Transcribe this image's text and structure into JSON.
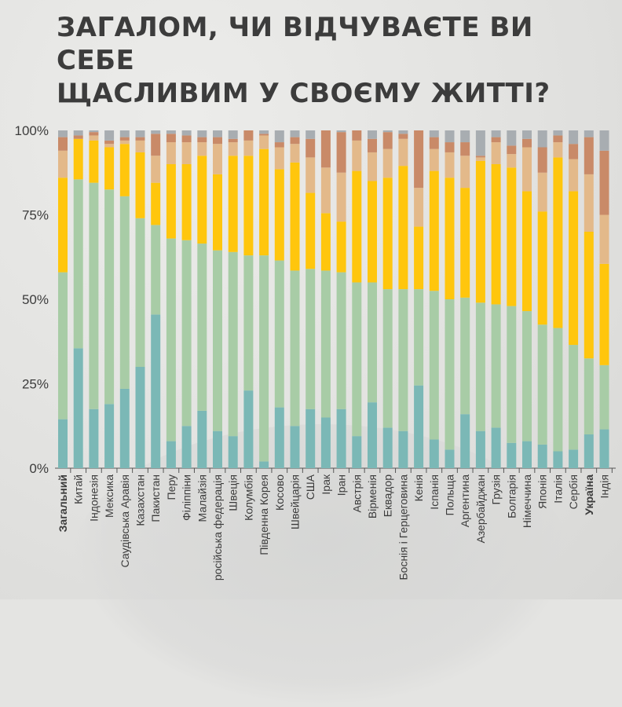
{
  "title_lines": [
    "ЗАГАЛОМ, ЧИ ВІДЧУВАЄТЕ ВИ СЕБЕ",
    "ЩАСЛИВИМ У СВОЄМУ ЖИТТІ?"
  ],
  "colors": {
    "very_happy": "#7bb8b6",
    "rather_happy": "#a8cca6",
    "rather_unhappy": "#ffc60d",
    "not_at_all_happy": "#e3b98a",
    "dont_know": "#c98a68",
    "no_answer": "#a8adb1",
    "text": "#3c3c3c"
  },
  "chart_data": {
    "type": "bar",
    "stacked": true,
    "ylim": [
      0,
      100
    ],
    "yticks": [
      "0%",
      "25%",
      "50%",
      "75%",
      "100%"
    ],
    "grid": false,
    "highlight_categories": [
      "Загальний",
      "Україна"
    ],
    "categories": [
      "Загальний",
      "Китай",
      "Індонезія",
      "Мексика",
      "Саудівська Аравія",
      "Казахстан",
      "Пакистан",
      "Перу",
      "Філіппіни",
      "Малайзія",
      "російська федерація",
      "Швеція",
      "Колумбія",
      "Південна Корея",
      "Косово",
      "Швейцарія",
      "США",
      "Ірак",
      "Іран",
      "Австрія",
      "Вірменія",
      "Еквадор",
      "Боснія і Герцеговина",
      "Кенія",
      "Іспанія",
      "Польща",
      "Аргентина",
      "Азербайджан",
      "Грузія",
      "Болгарія",
      "Німеччина",
      "Японія",
      "Італія",
      "Сербія",
      "Україна",
      "Індія"
    ],
    "series": [
      {
        "values": [
          14.5,
          35.5,
          17.5,
          19,
          23.5,
          30,
          45.5,
          8,
          12.5,
          17,
          11,
          9.5,
          23,
          2,
          18,
          12.5,
          17.5,
          15,
          17.5,
          9.5,
          19.5,
          12,
          11,
          24.5,
          8.5,
          5.5,
          16,
          11,
          12,
          7.5,
          8,
          7,
          5,
          5.5,
          10,
          11.5
        ]
      },
      {
        "values": [
          43.5,
          50,
          67,
          63.5,
          57,
          44,
          26.5,
          60,
          55,
          49.5,
          53.5,
          54.5,
          40,
          61,
          43.5,
          46,
          41.5,
          43.5,
          40.5,
          45.5,
          35.5,
          41,
          42,
          28.5,
          44,
          44.5,
          34.5,
          38,
          36.5,
          40.5,
          38.5,
          35.5,
          36.5,
          31,
          22.5,
          19
        ]
      },
      {
        "values": [
          28,
          12,
          12.5,
          12.5,
          15.5,
          19.5,
          12.5,
          22,
          22.5,
          26,
          22.5,
          28.5,
          29.5,
          31.5,
          27,
          32,
          22.5,
          17,
          15,
          33,
          30,
          33,
          36.5,
          18.5,
          35.5,
          36,
          32.5,
          42,
          41.5,
          41,
          35.5,
          33.5,
          50.5,
          45.5,
          37.5,
          30
        ]
      },
      {
        "values": [
          8,
          0,
          1.5,
          1,
          1,
          3.5,
          8,
          6.5,
          6.5,
          4,
          9,
          4,
          4.5,
          4,
          6.5,
          5.5,
          10.5,
          13.5,
          14.5,
          9,
          8.5,
          8.5,
          8,
          11.5,
          6.5,
          7.5,
          9.5,
          1,
          6.5,
          4,
          13,
          11.5,
          4.5,
          9.5,
          17,
          14.5
        ]
      },
      {
        "values": [
          4,
          1,
          1,
          1,
          1,
          1,
          6.5,
          2.5,
          2,
          1.5,
          2,
          1,
          3,
          0.5,
          1.5,
          2,
          5.5,
          11,
          12,
          3,
          4,
          5,
          1.5,
          17,
          3.5,
          3,
          4,
          0.5,
          1.5,
          2.5,
          2.5,
          7.5,
          2,
          4.5,
          11,
          19
        ]
      },
      {
        "values": [
          2,
          1.5,
          0.5,
          3,
          2,
          2,
          1,
          1,
          1.5,
          2,
          2,
          2.5,
          0,
          1,
          3.5,
          2,
          2.5,
          0,
          0.5,
          0,
          2.5,
          0.5,
          1,
          0,
          2,
          3.5,
          3.5,
          7.5,
          2,
          4.5,
          2.5,
          5,
          1.5,
          4,
          2,
          6
        ]
      }
    ]
  }
}
